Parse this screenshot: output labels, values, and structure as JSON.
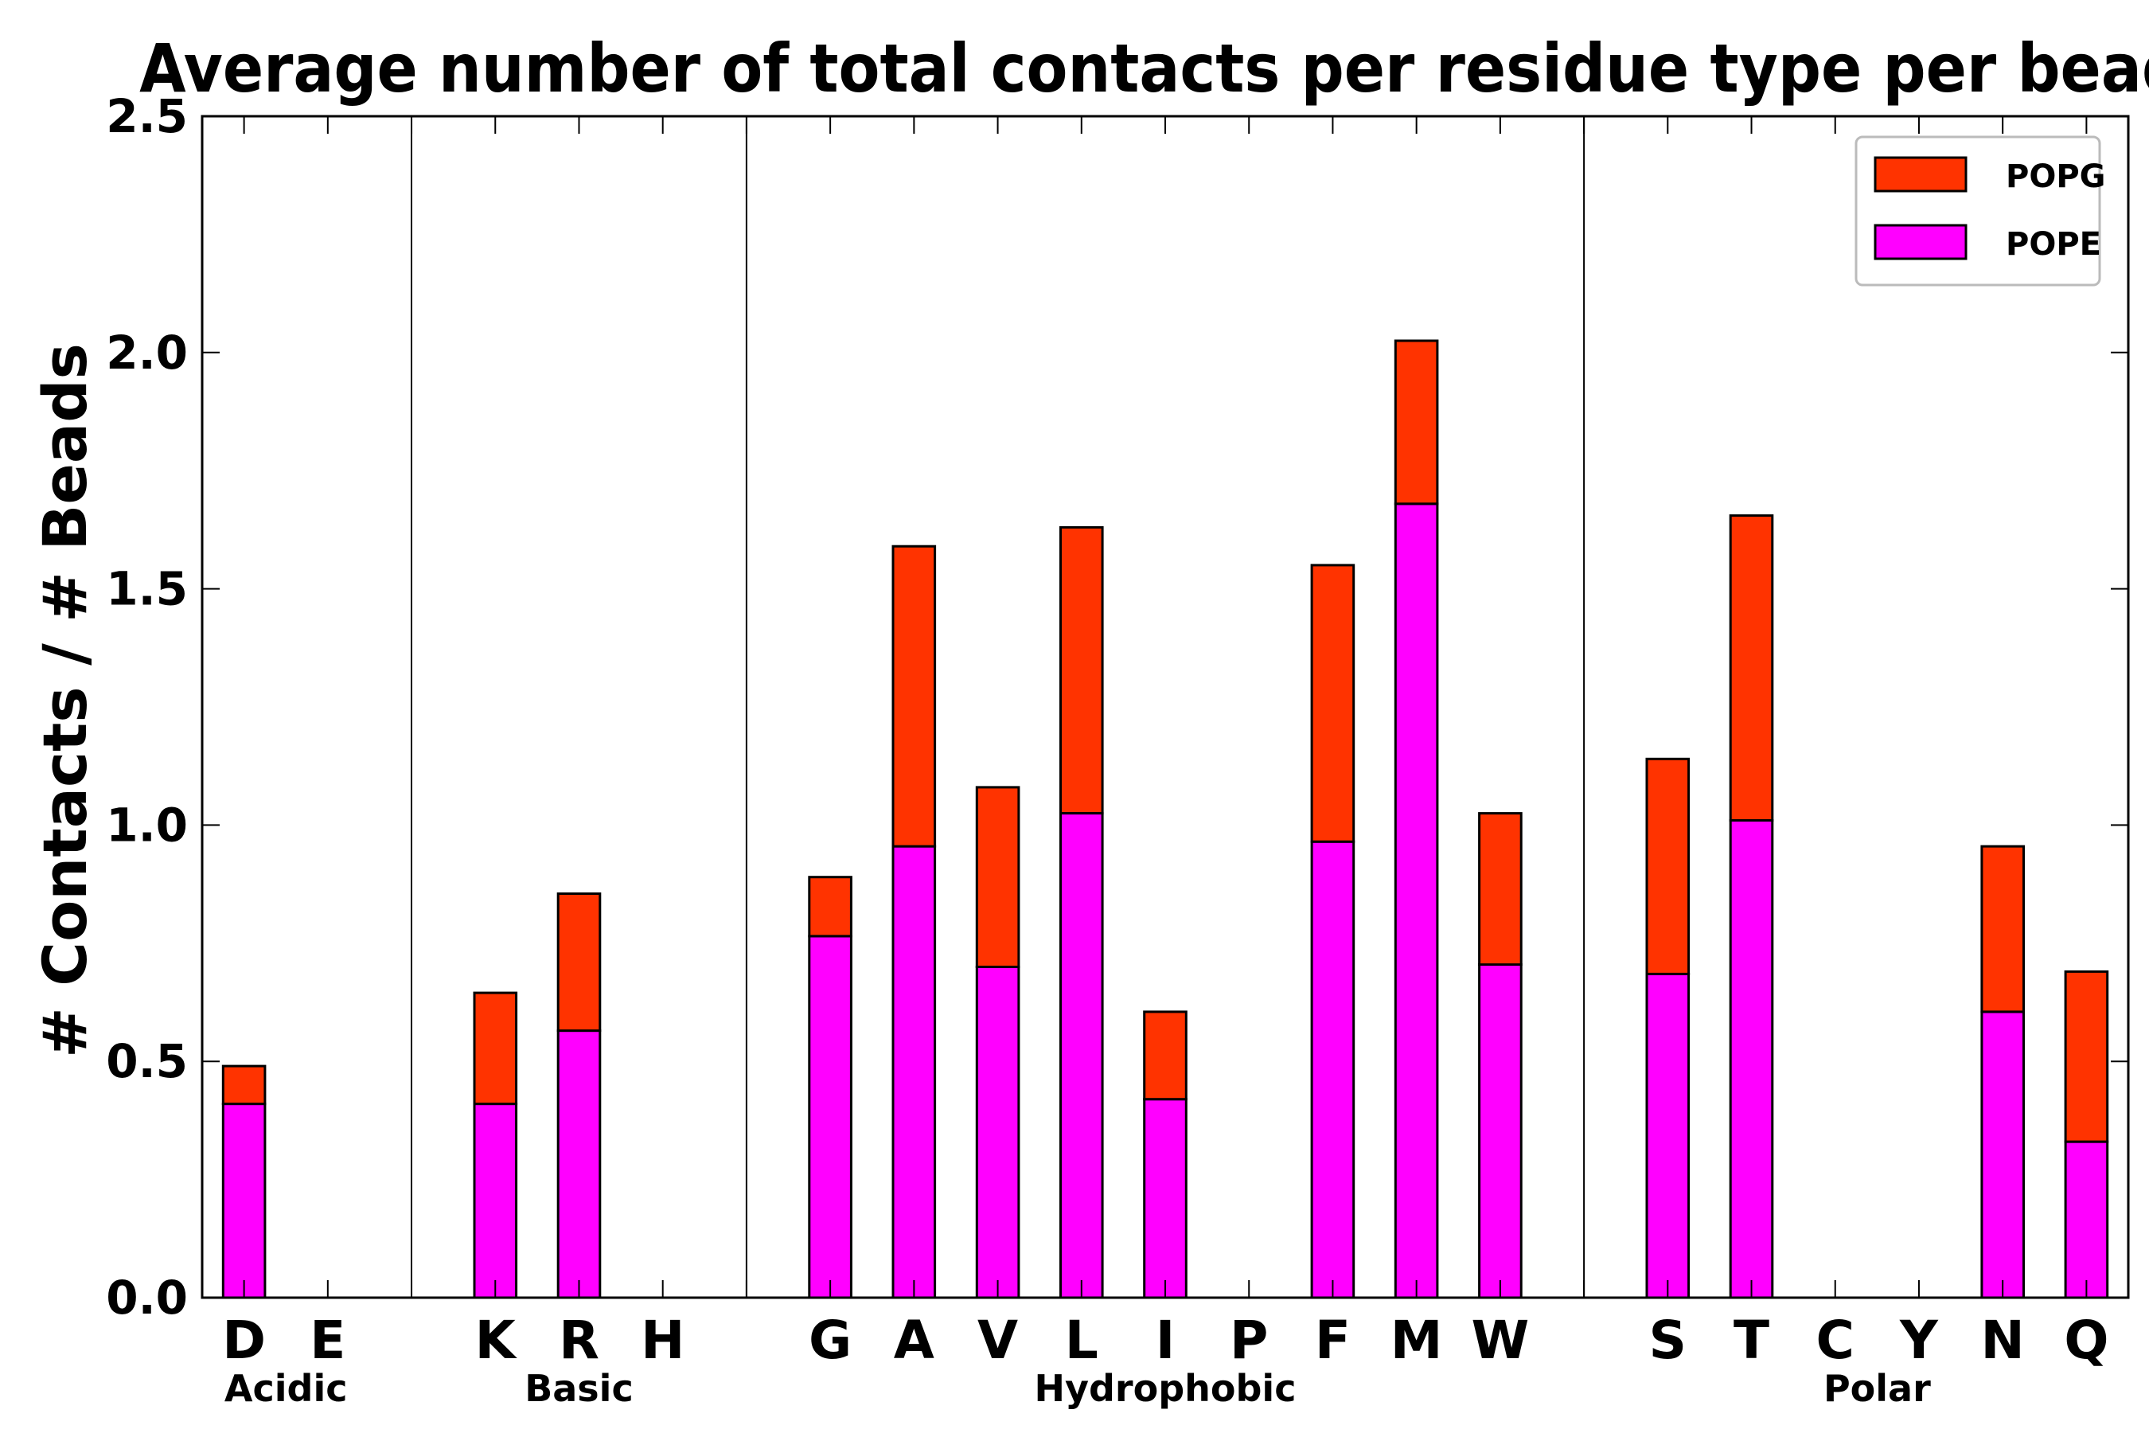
{
  "chart_data": {
    "type": "bar",
    "stacked": true,
    "title": "Average number of total contacts per residue type per bead",
    "xlabel": "",
    "ylabel": "# Contacts / # Beads",
    "ylim": [
      0,
      2.5
    ],
    "yticks": [
      "0.0",
      "0.5",
      "1.0",
      "1.5",
      "2.0",
      "2.5"
    ],
    "grid": false,
    "legend_position": "top-right",
    "categories": [
      "D",
      "E",
      "",
      "K",
      "R",
      "H",
      "",
      "G",
      "A",
      "V",
      "L",
      "I",
      "P",
      "F",
      "M",
      "W",
      "",
      "S",
      "T",
      "C",
      "Y",
      "N",
      "Q"
    ],
    "groups": [
      {
        "label": "Acidic",
        "members": [
          "D",
          "E"
        ]
      },
      {
        "label": "Basic",
        "members": [
          "K",
          "R",
          "H"
        ]
      },
      {
        "label": "Hydrophobic",
        "members": [
          "G",
          "A",
          "V",
          "L",
          "I",
          "P",
          "F",
          "M",
          "W"
        ]
      },
      {
        "label": "Polar",
        "members": [
          "S",
          "T",
          "C",
          "Y",
          "N",
          "Q"
        ]
      }
    ],
    "series": [
      {
        "name": "POPE",
        "color": "#ff00ff",
        "values": [
          0.41,
          0,
          0,
          0.41,
          0.565,
          0,
          0,
          0.765,
          0.955,
          0.7,
          1.025,
          0.42,
          0,
          0.965,
          1.68,
          0.705,
          0,
          0.685,
          1.01,
          0,
          0,
          0.605,
          0.33
        ]
      },
      {
        "name": "POPG",
        "color": "#ff3300",
        "values": [
          0.08,
          0,
          0,
          0.235,
          0.29,
          0,
          0,
          0.125,
          0.635,
          0.38,
          0.605,
          0.185,
          0,
          0.585,
          0.345,
          0.32,
          0,
          0.455,
          0.645,
          0,
          0,
          0.35,
          0.36
        ]
      }
    ],
    "legend": [
      {
        "label": "POPG",
        "color": "#ff3300"
      },
      {
        "label": "POPE",
        "color": "#ff00ff"
      }
    ]
  }
}
